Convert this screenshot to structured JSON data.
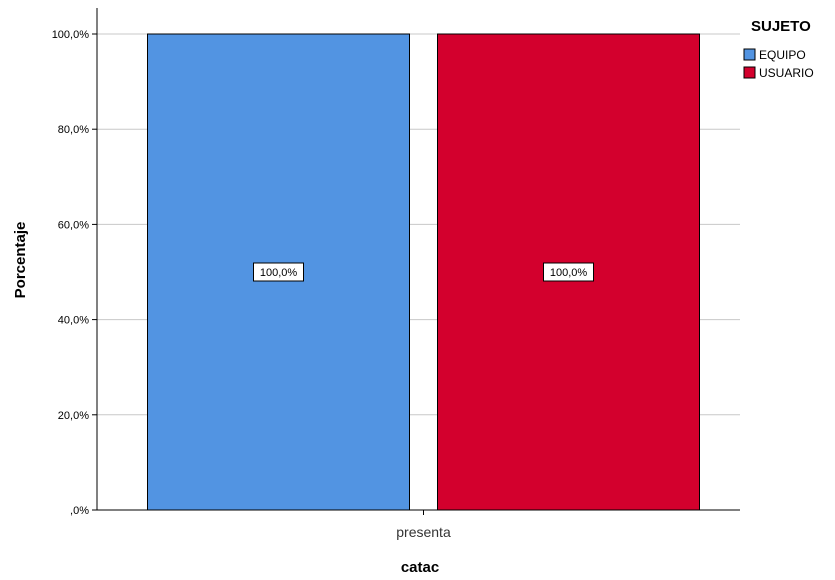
{
  "chart_data": {
    "type": "bar",
    "categories": [
      "presenta"
    ],
    "series": [
      {
        "name": "EQUIPO",
        "values": [
          100.0
        ],
        "color": "#5294e2",
        "data_label": "100,0%"
      },
      {
        "name": "USUARIO",
        "values": [
          100.0
        ],
        "color": "#d3002d",
        "data_label": "100,0%"
      }
    ],
    "xlabel": "catac",
    "ylabel": "Porcentaje",
    "ylim": [
      0,
      100
    ],
    "yticks": [
      0,
      20,
      40,
      60,
      80,
      100
    ],
    "ytick_labels": [
      ",0%",
      "20,0%",
      "40,0%",
      "60,0%",
      "80,0%",
      "100,0%"
    ],
    "legend_title": "SUJETO",
    "legend_position": "top-right",
    "grid": true
  }
}
